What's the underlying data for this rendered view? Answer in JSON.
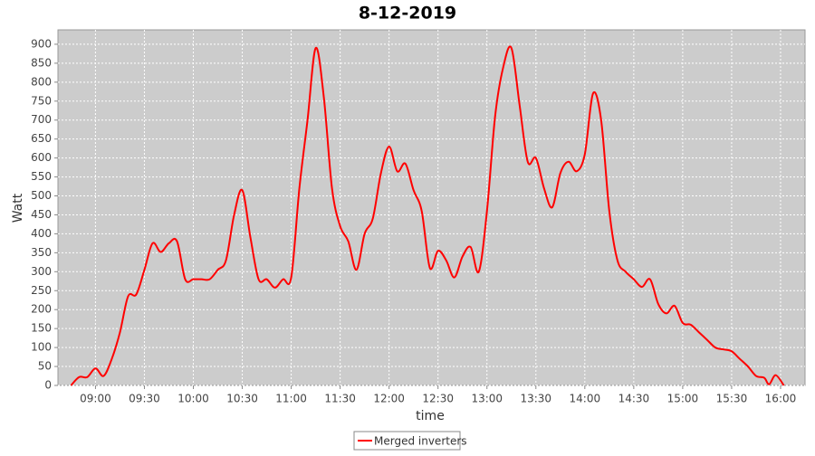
{
  "chart_data": {
    "type": "line",
    "title": "8-12-2019",
    "x_label": "time",
    "y_label": "Watt",
    "x": [
      "08:45",
      "08:50",
      "08:55",
      "09:00",
      "09:05",
      "09:10",
      "09:15",
      "09:20",
      "09:25",
      "09:30",
      "09:35",
      "09:40",
      "09:45",
      "09:50",
      "09:55",
      "10:00",
      "10:05",
      "10:10",
      "10:15",
      "10:20",
      "10:25",
      "10:30",
      "10:35",
      "10:40",
      "10:45",
      "10:50",
      "10:55",
      "11:00",
      "11:05",
      "11:10",
      "11:15",
      "11:20",
      "11:25",
      "11:30",
      "11:35",
      "11:40",
      "11:45",
      "11:50",
      "11:55",
      "12:00",
      "12:05",
      "12:10",
      "12:15",
      "12:20",
      "12:25",
      "12:30",
      "12:35",
      "12:40",
      "12:45",
      "12:50",
      "12:55",
      "13:00",
      "13:05",
      "13:10",
      "13:15",
      "13:20",
      "13:25",
      "13:30",
      "13:35",
      "13:40",
      "13:45",
      "13:50",
      "13:55",
      "14:00",
      "14:05",
      "14:10",
      "14:15",
      "14:20",
      "14:25",
      "14:30",
      "14:35",
      "14:40",
      "14:45",
      "14:50",
      "14:55",
      "15:00",
      "15:05",
      "15:10",
      "15:15",
      "15:20",
      "15:25",
      "15:30",
      "15:35",
      "15:40",
      "15:45",
      "15:50",
      "15:53",
      "15:57",
      "16:02"
    ],
    "series": [
      {
        "name": "Merged inverters",
        "color": "#ff0000",
        "values": [
          0,
          22,
          22,
          45,
          25,
          70,
          140,
          235,
          240,
          305,
          375,
          352,
          375,
          380,
          280,
          280,
          280,
          280,
          305,
          330,
          450,
          515,
          390,
          280,
          280,
          258,
          280,
          285,
          520,
          700,
          890,
          760,
          520,
          420,
          380,
          305,
          400,
          440,
          560,
          630,
          565,
          585,
          515,
          460,
          310,
          355,
          330,
          285,
          340,
          365,
          300,
          460,
          710,
          840,
          890,
          740,
          590,
          600,
          520,
          470,
          560,
          590,
          565,
          610,
          770,
          700,
          460,
          330,
          300,
          280,
          260,
          280,
          215,
          190,
          210,
          165,
          160,
          140,
          120,
          100,
          95,
          90,
          70,
          50,
          25,
          20,
          3,
          27,
          0
        ]
      }
    ],
    "xlim": [
      "08:37",
      "16:15"
    ],
    "xticks": [
      "09:00",
      "09:30",
      "10:00",
      "10:30",
      "11:00",
      "11:30",
      "12:00",
      "12:30",
      "13:00",
      "13:30",
      "14:00",
      "14:30",
      "15:00",
      "15:30",
      "16:00"
    ],
    "ylim": [
      0,
      938
    ],
    "yticks": [
      0,
      50,
      100,
      150,
      200,
      250,
      300,
      350,
      400,
      450,
      500,
      550,
      600,
      650,
      700,
      750,
      800,
      850,
      900
    ],
    "grid": true,
    "legend": "bottom"
  }
}
